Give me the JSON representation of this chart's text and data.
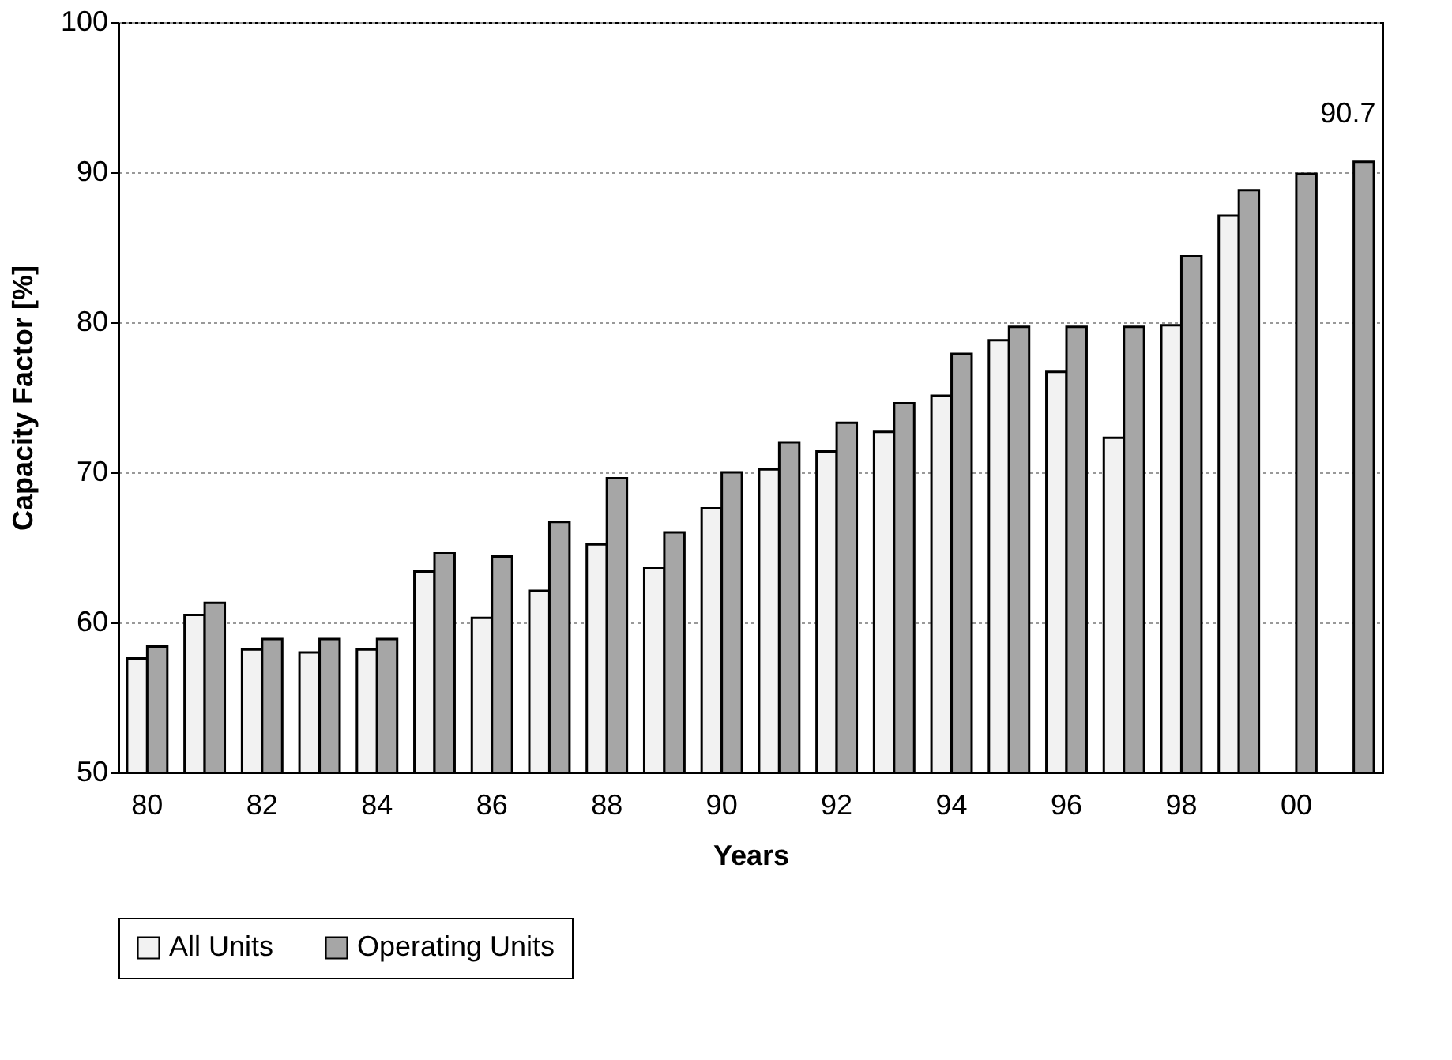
{
  "chart_data": {
    "type": "bar",
    "xlabel": "Years",
    "ylabel": "Capacity Factor [%]",
    "categories": [
      "80",
      null,
      "82",
      null,
      "84",
      null,
      "86",
      null,
      "88",
      null,
      "90",
      null,
      "92",
      null,
      "94",
      null,
      "96",
      null,
      "98",
      null,
      "00",
      null
    ],
    "series": [
      {
        "name": "All Units",
        "color": "#f2f2f2",
        "values": [
          57.6,
          60.5,
          58.2,
          58.0,
          58.2,
          63.4,
          60.3,
          62.1,
          65.2,
          63.6,
          67.6,
          70.2,
          71.4,
          72.7,
          75.1,
          78.8,
          76.7,
          72.3,
          79.8,
          87.1,
          null,
          null
        ]
      },
      {
        "name": "Operating Units",
        "color": "#a6a6a6",
        "values": [
          58.4,
          61.3,
          58.9,
          58.9,
          58.9,
          64.6,
          64.4,
          66.7,
          69.6,
          66.0,
          70.0,
          72.0,
          73.3,
          74.6,
          77.9,
          79.7,
          79.7,
          79.7,
          84.4,
          88.8,
          89.9,
          90.7
        ],
        "value_labels": [
          null,
          null,
          null,
          null,
          null,
          null,
          null,
          null,
          null,
          null,
          null,
          null,
          null,
          null,
          null,
          null,
          null,
          null,
          null,
          null,
          null,
          "90.7"
        ]
      }
    ],
    "ylim": [
      50,
      100
    ],
    "yticks": [
      50,
      60,
      70,
      80,
      90,
      100
    ],
    "grid": "y",
    "legend": "bottom"
  }
}
